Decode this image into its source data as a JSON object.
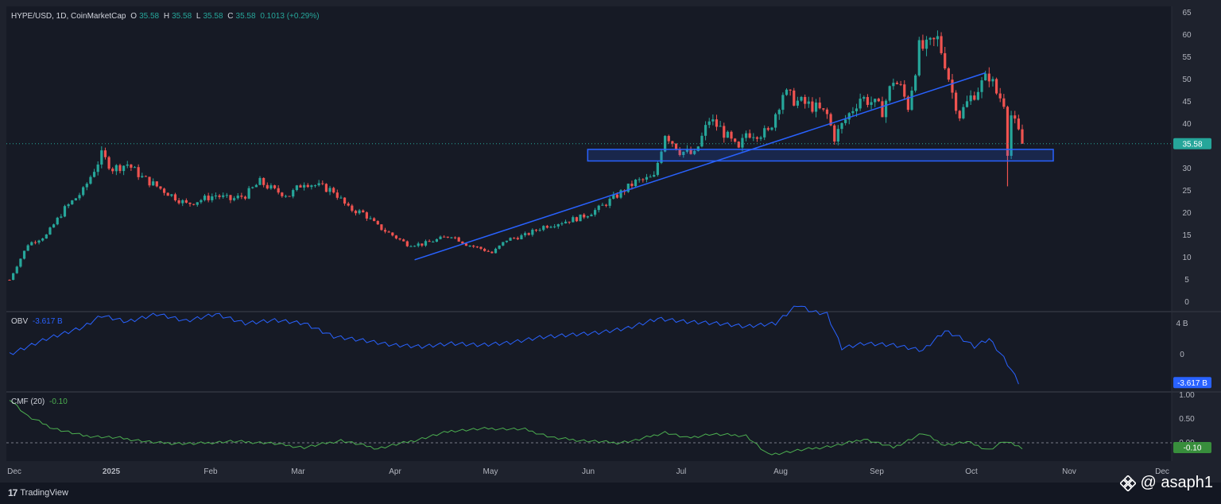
{
  "legend": {
    "symbol": "HYPE/USD, 1D, CoinMarketCap",
    "o_label": "O",
    "o_val": "35.58",
    "h_label": "H",
    "h_val": "35.58",
    "l_label": "L",
    "l_val": "35.58",
    "c_label": "C",
    "c_val": "35.58",
    "change": "0.1013 (+0.29%)"
  },
  "obv_legend": {
    "name": "OBV",
    "value": "-3.617 B"
  },
  "cmf_legend": {
    "name": "CMF (20)",
    "value": "-0.10"
  },
  "price_badge": "35.58",
  "obv_badge": "-3.617 B",
  "cmf_badge": "-0.10",
  "branding": {
    "logo_text": "TradingView",
    "watermark": "@ asaph1"
  },
  "colors": {
    "up": "#26a69a",
    "down": "#ef5350",
    "obv": "#2962ff",
    "cmf": "#4caf50",
    "drawing": "#2962ff"
  },
  "chart_data": {
    "type": "candlestick",
    "x_ticks": [
      "Dec",
      "2025",
      "Feb",
      "Mar",
      "Apr",
      "May",
      "Jun",
      "Jul",
      "Aug",
      "Sep",
      "Oct",
      "Nov",
      "Dec"
    ],
    "price_axis": {
      "ticks": [
        "65",
        "60",
        "55",
        "50",
        "45",
        "40",
        "35",
        "30",
        "25",
        "20",
        "15",
        "10",
        "5",
        "0"
      ],
      "range": [
        0,
        65
      ]
    },
    "obv_axis": {
      "ticks": [
        "4 B",
        "0"
      ]
    },
    "cmf_axis": {
      "ticks": [
        "1.00",
        "0.50",
        "0.00"
      ]
    },
    "last_price": 35.58,
    "price_path": [
      [
        0,
        5
      ],
      [
        5,
        13
      ],
      [
        10,
        15
      ],
      [
        15,
        21
      ],
      [
        20,
        25
      ],
      [
        25,
        33
      ],
      [
        28,
        30
      ],
      [
        32,
        31
      ],
      [
        36,
        28
      ],
      [
        40,
        26
      ],
      [
        44,
        24
      ],
      [
        48,
        22
      ],
      [
        52,
        23
      ],
      [
        56,
        24
      ],
      [
        60,
        23
      ],
      [
        64,
        24
      ],
      [
        68,
        27
      ],
      [
        72,
        25
      ],
      [
        76,
        24
      ],
      [
        80,
        27
      ],
      [
        84,
        26
      ],
      [
        88,
        25
      ],
      [
        92,
        21
      ],
      [
        96,
        20
      ],
      [
        100,
        17
      ],
      [
        104,
        15
      ],
      [
        108,
        13
      ],
      [
        112,
        13
      ],
      [
        116,
        14
      ],
      [
        120,
        15
      ],
      [
        124,
        13
      ],
      [
        128,
        12
      ],
      [
        131,
        11
      ],
      [
        135,
        14
      ],
      [
        140,
        15
      ],
      [
        145,
        17
      ],
      [
        150,
        18
      ],
      [
        155,
        19
      ],
      [
        160,
        21
      ],
      [
        165,
        24
      ],
      [
        170,
        27
      ],
      [
        175,
        28
      ],
      [
        178,
        38
      ],
      [
        182,
        34
      ],
      [
        186,
        33
      ],
      [
        190,
        41
      ],
      [
        193,
        39
      ],
      [
        196,
        36
      ],
      [
        198,
        34
      ],
      [
        200,
        38
      ],
      [
        203,
        38
      ],
      [
        206,
        38
      ],
      [
        210,
        47
      ],
      [
        214,
        45
      ],
      [
        218,
        44
      ],
      [
        222,
        42
      ],
      [
        224,
        37
      ],
      [
        227,
        41
      ],
      [
        231,
        46
      ],
      [
        234,
        45
      ],
      [
        237,
        43
      ],
      [
        240,
        50
      ],
      [
        242,
        48
      ],
      [
        244,
        44
      ],
      [
        247,
        57
      ],
      [
        249,
        57
      ],
      [
        252,
        59
      ],
      [
        254,
        54
      ],
      [
        256,
        47
      ],
      [
        258,
        42
      ],
      [
        261,
        46
      ],
      [
        264,
        49
      ],
      [
        266,
        51
      ],
      [
        268,
        47
      ],
      [
        270,
        45
      ],
      [
        271,
        34
      ],
      [
        272,
        42
      ],
      [
        274,
        38
      ],
      [
        275,
        35.58
      ]
    ],
    "wicks": [
      [
        271,
        26,
        42
      ]
    ],
    "obv_path": [
      [
        0,
        0.0
      ],
      [
        10,
        2.0
      ],
      [
        20,
        3.5
      ],
      [
        25,
        5.0
      ],
      [
        32,
        4.2
      ],
      [
        40,
        5.2
      ],
      [
        48,
        4.3
      ],
      [
        56,
        5.2
      ],
      [
        64,
        4.0
      ],
      [
        72,
        4.4
      ],
      [
        80,
        4.0
      ],
      [
        88,
        2.3
      ],
      [
        96,
        1.8
      ],
      [
        104,
        1.2
      ],
      [
        112,
        1.0
      ],
      [
        120,
        1.4
      ],
      [
        128,
        1.2
      ],
      [
        136,
        1.5
      ],
      [
        144,
        2.2
      ],
      [
        152,
        2.5
      ],
      [
        160,
        2.8
      ],
      [
        168,
        3.4
      ],
      [
        176,
        4.6
      ],
      [
        184,
        4.2
      ],
      [
        192,
        4.0
      ],
      [
        200,
        3.6
      ],
      [
        208,
        4.0
      ],
      [
        214,
        6.4
      ],
      [
        218,
        5.5
      ],
      [
        222,
        5.2
      ],
      [
        226,
        0.8
      ],
      [
        232,
        1.4
      ],
      [
        240,
        1.2
      ],
      [
        248,
        0.5
      ],
      [
        254,
        3.0
      ],
      [
        258,
        2.2
      ],
      [
        262,
        1.0
      ],
      [
        266,
        2.0
      ],
      [
        270,
        -0.5
      ],
      [
        272,
        -2.0
      ],
      [
        274,
        -3.617
      ]
    ],
    "cmf_path": [
      [
        0,
        0.92
      ],
      [
        5,
        0.55
      ],
      [
        12,
        0.3
      ],
      [
        20,
        0.15
      ],
      [
        30,
        0.1
      ],
      [
        40,
        0.0
      ],
      [
        50,
        -0.02
      ],
      [
        60,
        0.03
      ],
      [
        70,
        0.0
      ],
      [
        80,
        -0.1
      ],
      [
        90,
        0.05
      ],
      [
        100,
        -0.12
      ],
      [
        110,
        0.05
      ],
      [
        120,
        0.25
      ],
      [
        130,
        0.3
      ],
      [
        140,
        0.28
      ],
      [
        148,
        0.1
      ],
      [
        155,
        0.05
      ],
      [
        165,
        0.0
      ],
      [
        170,
        0.05
      ],
      [
        178,
        0.22
      ],
      [
        184,
        0.1
      ],
      [
        190,
        0.18
      ],
      [
        200,
        0.15
      ],
      [
        206,
        -0.25
      ],
      [
        215,
        -0.15
      ],
      [
        225,
        -0.05
      ],
      [
        232,
        0.08
      ],
      [
        240,
        -0.1
      ],
      [
        248,
        0.2
      ],
      [
        254,
        -0.05
      ],
      [
        260,
        0.02
      ],
      [
        266,
        -0.15
      ],
      [
        270,
        0.03
      ],
      [
        275,
        -0.1
      ]
    ]
  }
}
